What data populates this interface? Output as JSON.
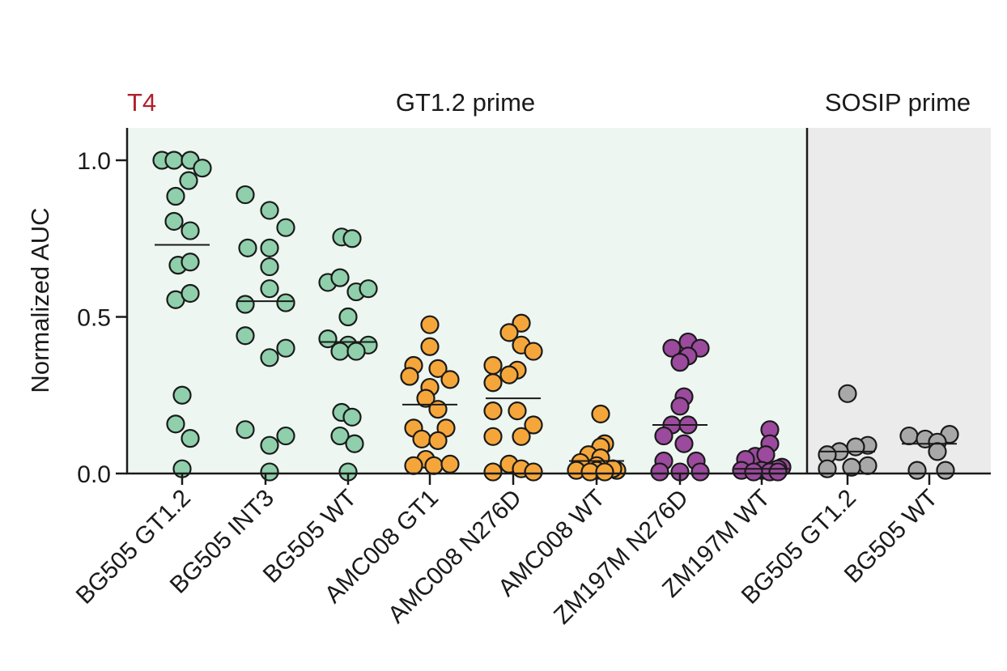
{
  "chart_data": {
    "type": "scatter",
    "panel_label": "T4",
    "group_labels": [
      {
        "name": "GT1.2 prime",
        "categories": [
          0,
          7
        ]
      },
      {
        "name": "SOSIP prime",
        "categories": [
          8,
          9
        ]
      }
    ],
    "ylabel": "Normalized AUC",
    "xlabel": "",
    "ylim": [
      0,
      1.1
    ],
    "yticks": [
      "0.0",
      "0.5",
      "1.0"
    ],
    "ytick_values": [
      0,
      0.5,
      1.0
    ],
    "grid": false,
    "categories": [
      "BG505 GT1.2",
      "BG505 INT3",
      "BG505 WT",
      "AMC008 GT1",
      "AMC008 N276D",
      "AMC008 WT",
      "ZM197M N276D",
      "ZM197M WT",
      "BG505 GT1.2",
      "BG505 WT"
    ],
    "colors": {
      "green": "#8fcfab",
      "orange": "#f5a63a",
      "purple": "#9b4a9e",
      "grey": "#a8a8a8",
      "gt_bg": "#edf6f0",
      "sosip_bg": "#ebebeb",
      "label_red": "#b0202a"
    },
    "series": [
      {
        "category": "BG505 GT1.2",
        "color": "green",
        "median": 0.73,
        "points": [
          [
            -0.25,
            1.0
          ],
          [
            -0.1,
            1.0
          ],
          [
            0.1,
            1.0
          ],
          [
            0.25,
            0.975
          ],
          [
            0.08,
            0.935
          ],
          [
            -0.08,
            0.885
          ],
          [
            -0.1,
            0.805
          ],
          [
            0.1,
            0.775
          ],
          [
            -0.05,
            0.665
          ],
          [
            0.1,
            0.675
          ],
          [
            -0.08,
            0.555
          ],
          [
            0.1,
            0.575
          ],
          [
            0,
            0.25
          ],
          [
            -0.08,
            0.158
          ],
          [
            0.1,
            0.112
          ],
          [
            0,
            0.015
          ]
        ]
      },
      {
        "category": "BG505 INT3",
        "color": "green",
        "median": 0.55,
        "points": [
          [
            -0.25,
            0.89
          ],
          [
            0.05,
            0.84
          ],
          [
            0.25,
            0.785
          ],
          [
            -0.22,
            0.72
          ],
          [
            0.05,
            0.72
          ],
          [
            0.05,
            0.66
          ],
          [
            0.05,
            0.59
          ],
          [
            -0.25,
            0.54
          ],
          [
            0.25,
            0.545
          ],
          [
            -0.25,
            0.44
          ],
          [
            0.25,
            0.4
          ],
          [
            0.05,
            0.37
          ],
          [
            -0.25,
            0.14
          ],
          [
            0.25,
            0.12
          ],
          [
            0.05,
            0.09
          ],
          [
            0.05,
            0.005
          ]
        ]
      },
      {
        "category": "BG505 WT",
        "color": "green",
        "median": 0.42,
        "points": [
          [
            -0.08,
            0.755
          ],
          [
            0.05,
            0.75
          ],
          [
            -0.25,
            0.61
          ],
          [
            -0.1,
            0.625
          ],
          [
            0.1,
            0.58
          ],
          [
            0.25,
            0.59
          ],
          [
            0,
            0.5
          ],
          [
            -0.25,
            0.43
          ],
          [
            0,
            0.41
          ],
          [
            0.25,
            0.41
          ],
          [
            -0.1,
            0.39
          ],
          [
            0.1,
            0.39
          ],
          [
            -0.08,
            0.195
          ],
          [
            0.05,
            0.18
          ],
          [
            -0.1,
            0.12
          ],
          [
            0.08,
            0.095
          ],
          [
            0,
            0.005
          ]
        ]
      },
      {
        "category": "AMC008 GT1",
        "color": "orange",
        "median": 0.22,
        "points": [
          [
            0,
            0.475
          ],
          [
            0,
            0.405
          ],
          [
            -0.2,
            0.345
          ],
          [
            0.1,
            0.335
          ],
          [
            -0.25,
            0.31
          ],
          [
            0.25,
            0.3
          ],
          [
            0,
            0.275
          ],
          [
            -0.05,
            0.24
          ],
          [
            0.1,
            0.205
          ],
          [
            -0.2,
            0.145
          ],
          [
            0.2,
            0.145
          ],
          [
            -0.1,
            0.11
          ],
          [
            0.1,
            0.105
          ],
          [
            -0.05,
            0.045
          ],
          [
            -0.2,
            0.025
          ],
          [
            0.05,
            0.025
          ],
          [
            0.25,
            0.03
          ]
        ]
      },
      {
        "category": "AMC008 N276D",
        "color": "orange",
        "median": 0.24,
        "points": [
          [
            0.1,
            0.48
          ],
          [
            -0.05,
            0.45
          ],
          [
            0.1,
            0.41
          ],
          [
            0.25,
            0.39
          ],
          [
            -0.25,
            0.345
          ],
          [
            0.05,
            0.33
          ],
          [
            -0.05,
            0.315
          ],
          [
            -0.25,
            0.29
          ],
          [
            -0.25,
            0.2
          ],
          [
            0.05,
            0.2
          ],
          [
            0.25,
            0.155
          ],
          [
            -0.25,
            0.118
          ],
          [
            0.1,
            0.118
          ],
          [
            -0.05,
            0.03
          ],
          [
            0.1,
            0.015
          ],
          [
            0.25,
            0.005
          ],
          [
            -0.25,
            0.005
          ]
        ]
      },
      {
        "category": "AMC008 WT",
        "color": "orange",
        "median": 0.04,
        "points": [
          [
            0.05,
            0.19
          ],
          [
            0.1,
            0.095
          ],
          [
            0.05,
            0.085
          ],
          [
            -0.1,
            0.06
          ],
          [
            0.05,
            0.05
          ],
          [
            -0.2,
            0.035
          ],
          [
            0,
            0.025
          ],
          [
            -0.25,
            0.01
          ],
          [
            0,
            0.01
          ],
          [
            0.25,
            0.01
          ],
          [
            0.2,
            0.015
          ],
          [
            -0.08,
            0.005
          ],
          [
            0.1,
            0.005
          ]
        ]
      },
      {
        "category": "ZM197M N276D",
        "color": "purple",
        "median": 0.155,
        "points": [
          [
            0.1,
            0.42
          ],
          [
            -0.1,
            0.4
          ],
          [
            0.25,
            0.4
          ],
          [
            0.1,
            0.375
          ],
          [
            0,
            0.355
          ],
          [
            0.05,
            0.245
          ],
          [
            0,
            0.215
          ],
          [
            -0.1,
            0.155
          ],
          [
            0.1,
            0.155
          ],
          [
            -0.2,
            0.12
          ],
          [
            0.05,
            0.095
          ],
          [
            -0.2,
            0.04
          ],
          [
            0.2,
            0.04
          ],
          [
            -0.25,
            0.005
          ],
          [
            0,
            0.005
          ],
          [
            0.25,
            0.005
          ]
        ]
      },
      {
        "category": "ZM197M WT",
        "color": "purple",
        "median": 0.015,
        "points": [
          [
            0.1,
            0.14
          ],
          [
            0.1,
            0.095
          ],
          [
            -0.08,
            0.055
          ],
          [
            0.05,
            0.06
          ],
          [
            -0.2,
            0.045
          ],
          [
            0.25,
            0.02
          ],
          [
            0.2,
            0.015
          ],
          [
            -0.25,
            0.01
          ],
          [
            0,
            0.01
          ],
          [
            0.1,
            0.005
          ],
          [
            -0.1,
            0.005
          ],
          [
            0.2,
            0.005
          ]
        ]
      },
      {
        "category": "BG505 GT1.2",
        "color": "grey",
        "median": 0.07,
        "points": [
          [
            0,
            0.255
          ],
          [
            0.25,
            0.09
          ],
          [
            0.1,
            0.085
          ],
          [
            -0.1,
            0.07
          ],
          [
            -0.25,
            0.06
          ],
          [
            0.25,
            0.025
          ],
          [
            -0.25,
            0.015
          ],
          [
            0.05,
            0.02
          ]
        ]
      },
      {
        "category": "BG505 WT",
        "color": "grey",
        "median": 0.095,
        "points": [
          [
            0.25,
            0.125
          ],
          [
            -0.25,
            0.12
          ],
          [
            -0.05,
            0.11
          ],
          [
            0.1,
            0.1
          ],
          [
            0.1,
            0.07
          ],
          [
            -0.15,
            0.01
          ],
          [
            0.2,
            0.01
          ]
        ]
      }
    ]
  }
}
